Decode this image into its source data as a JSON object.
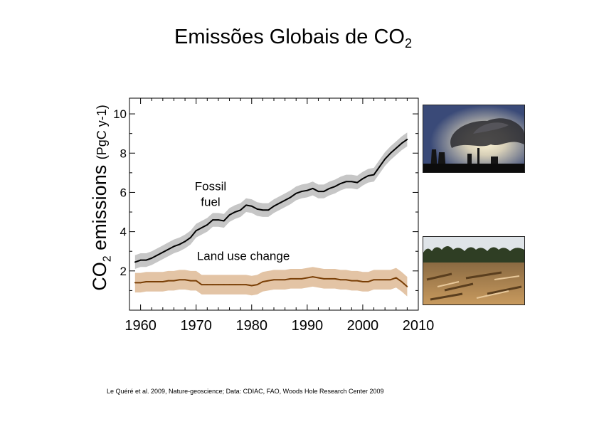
{
  "slide": {
    "title_main": "Emissões Globais de CO",
    "title_sub": "2",
    "credit": "Le Quéré et al. 2009, Nature-geoscience; Data: CDIAC, FAO, Woods Hole Research Center 2009"
  },
  "chart_data": {
    "type": "line",
    "title": "",
    "ylabel_main": "CO",
    "ylabel_sub": "2",
    "ylabel_rest": " emissions ",
    "ylabel_unit": "(PgC y-1)",
    "xlabel": "",
    "xlim": [
      1958,
      2010
    ],
    "ylim": [
      0,
      10.8
    ],
    "xticks": [
      1960,
      1970,
      1980,
      1990,
      2000,
      2010
    ],
    "yticks": [
      2,
      4,
      6,
      8,
      10
    ],
    "grid": false,
    "series": [
      {
        "name": "Fossil fuel",
        "line_color": "#000000",
        "band_color": "#c6c6c6",
        "x": [
          1959,
          1960,
          1961,
          1962,
          1963,
          1964,
          1965,
          1966,
          1967,
          1968,
          1969,
          1970,
          1971,
          1972,
          1973,
          1974,
          1975,
          1976,
          1977,
          1978,
          1979,
          1980,
          1981,
          1982,
          1983,
          1984,
          1985,
          1986,
          1987,
          1988,
          1989,
          1990,
          1991,
          1992,
          1993,
          1994,
          1995,
          1996,
          1997,
          1998,
          1999,
          2000,
          2001,
          2002,
          2003,
          2004,
          2005,
          2006,
          2007,
          2008
        ],
        "y": [
          2.45,
          2.55,
          2.55,
          2.65,
          2.8,
          2.95,
          3.1,
          3.25,
          3.35,
          3.5,
          3.7,
          4.05,
          4.2,
          4.35,
          4.6,
          4.6,
          4.55,
          4.85,
          5.0,
          5.1,
          5.35,
          5.3,
          5.15,
          5.1,
          5.1,
          5.3,
          5.45,
          5.6,
          5.75,
          5.95,
          6.05,
          6.1,
          6.2,
          6.05,
          6.05,
          6.2,
          6.3,
          6.45,
          6.55,
          6.55,
          6.5,
          6.7,
          6.85,
          6.9,
          7.3,
          7.7,
          8.0,
          8.25,
          8.5,
          8.7
        ],
        "uncertainty": 0.35
      },
      {
        "name": "Land use change",
        "line_color": "#7a3f06",
        "band_color": "#e3c4a5",
        "x": [
          1959,
          1960,
          1961,
          1962,
          1963,
          1964,
          1965,
          1966,
          1967,
          1968,
          1969,
          1970,
          1971,
          1972,
          1973,
          1974,
          1975,
          1976,
          1977,
          1978,
          1979,
          1980,
          1981,
          1982,
          1983,
          1984,
          1985,
          1986,
          1987,
          1988,
          1989,
          1990,
          1991,
          1992,
          1993,
          1994,
          1995,
          1996,
          1997,
          1998,
          1999,
          2000,
          2001,
          2002,
          2003,
          2004,
          2005,
          2006,
          2007,
          2008
        ],
        "y": [
          1.4,
          1.4,
          1.45,
          1.45,
          1.45,
          1.45,
          1.5,
          1.5,
          1.55,
          1.55,
          1.5,
          1.5,
          1.3,
          1.3,
          1.3,
          1.3,
          1.3,
          1.3,
          1.3,
          1.3,
          1.3,
          1.25,
          1.3,
          1.45,
          1.5,
          1.55,
          1.55,
          1.55,
          1.6,
          1.6,
          1.6,
          1.65,
          1.7,
          1.65,
          1.6,
          1.6,
          1.6,
          1.55,
          1.55,
          1.5,
          1.5,
          1.45,
          1.45,
          1.55,
          1.55,
          1.55,
          1.55,
          1.65,
          1.45,
          1.2
        ],
        "uncertainty": 0.5
      }
    ],
    "annotations": [
      {
        "text": "Fossil fuel",
        "line1": "Fossil",
        "line2": "fuel",
        "x": 1972.6,
        "y": 6.1
      },
      {
        "text": "Land use change",
        "x": 1978.5,
        "y": 2.55
      }
    ]
  },
  "images": [
    {
      "name": "smokestack-photo"
    },
    {
      "name": "deforestation-photo"
    }
  ]
}
